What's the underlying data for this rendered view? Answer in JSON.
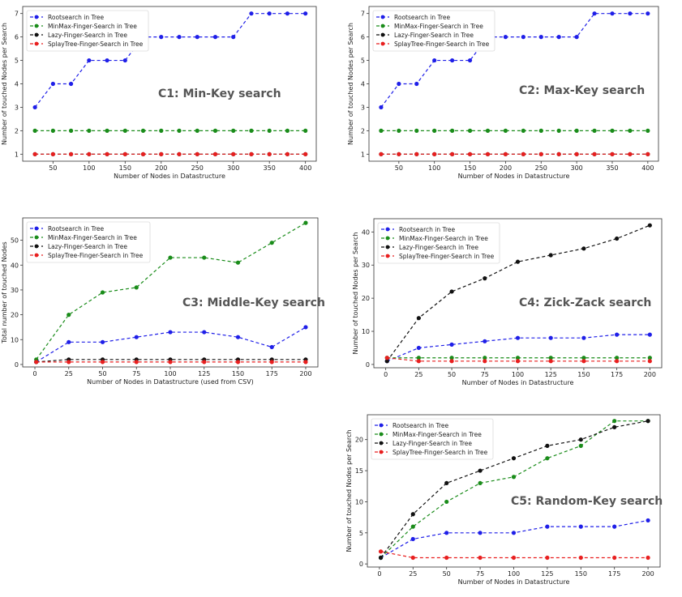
{
  "chart_data": [
    {
      "type": "line",
      "annotation": "C1: Min-Key search",
      "xlabel": "Number of Nodes in Datastructure",
      "ylabel": "Number of touched Nodes per Search",
      "xlim": [
        8,
        415
      ],
      "ylim": [
        0.7,
        7.3
      ],
      "xticks": [
        50,
        100,
        150,
        200,
        250,
        300,
        350,
        400
      ],
      "yticks": [
        1,
        2,
        3,
        4,
        5,
        6,
        7
      ],
      "legend": "top-left",
      "series": [
        {
          "name": "Rootsearch in Tree",
          "color": "#1f1fe8",
          "x": [
            25,
            50,
            75,
            100,
            125,
            150,
            175,
            200,
            225,
            250,
            275,
            300,
            325,
            350,
            375,
            400
          ],
          "y": [
            3,
            4,
            4,
            5,
            5,
            5,
            6,
            6,
            6,
            6,
            6,
            6,
            7,
            7,
            7,
            7
          ]
        },
        {
          "name": "MinMax-Finger-Search in Tree",
          "color": "#1a8c1a",
          "x": [
            25,
            50,
            75,
            100,
            125,
            150,
            175,
            200,
            225,
            250,
            275,
            300,
            325,
            350,
            375,
            400
          ],
          "y": [
            2,
            2,
            2,
            2,
            2,
            2,
            2,
            2,
            2,
            2,
            2,
            2,
            2,
            2,
            2,
            2
          ]
        },
        {
          "name": "Lazy-Finger-Search in Tree",
          "color": "#111111",
          "x": [
            25,
            50,
            75,
            100,
            125,
            150,
            175,
            200,
            225,
            250,
            275,
            300,
            325,
            350,
            375,
            400
          ],
          "y": [
            1,
            1,
            1,
            1,
            1,
            1,
            1,
            1,
            1,
            1,
            1,
            1,
            1,
            1,
            1,
            1
          ]
        },
        {
          "name": "SplayTree-Finger-Search  in Tree",
          "color": "#e81f1f",
          "x": [
            25,
            50,
            75,
            100,
            125,
            150,
            175,
            200,
            225,
            250,
            275,
            300,
            325,
            350,
            375,
            400
          ],
          "y": [
            1,
            1,
            1,
            1,
            1,
            1,
            1,
            1,
            1,
            1,
            1,
            1,
            1,
            1,
            1,
            1
          ]
        }
      ]
    },
    {
      "type": "line",
      "annotation": "C2: Max-Key search",
      "xlabel": "Number of Nodes in Datastructure",
      "ylabel": "Number of touched Nodes per Search",
      "xlim": [
        8,
        415
      ],
      "ylim": [
        0.7,
        7.3
      ],
      "xticks": [
        50,
        100,
        150,
        200,
        250,
        300,
        350,
        400
      ],
      "yticks": [
        1,
        2,
        3,
        4,
        5,
        6,
        7
      ],
      "legend": "top-left",
      "series": [
        {
          "name": "Rootsearch in Tree",
          "color": "#1f1fe8",
          "x": [
            25,
            50,
            75,
            100,
            125,
            150,
            175,
            200,
            225,
            250,
            275,
            300,
            325,
            350,
            375,
            400
          ],
          "y": [
            3,
            4,
            4,
            5,
            5,
            5,
            6,
            6,
            6,
            6,
            6,
            6,
            7,
            7,
            7,
            7
          ]
        },
        {
          "name": "MinMax-Finger-Search in Tree",
          "color": "#1a8c1a",
          "x": [
            25,
            50,
            75,
            100,
            125,
            150,
            175,
            200,
            225,
            250,
            275,
            300,
            325,
            350,
            375,
            400
          ],
          "y": [
            2,
            2,
            2,
            2,
            2,
            2,
            2,
            2,
            2,
            2,
            2,
            2,
            2,
            2,
            2,
            2
          ]
        },
        {
          "name": "Lazy-Finger-Search in Tree",
          "color": "#111111",
          "x": [
            25,
            50,
            75,
            100,
            125,
            150,
            175,
            200,
            225,
            250,
            275,
            300,
            325,
            350,
            375,
            400
          ],
          "y": [
            1,
            1,
            1,
            1,
            1,
            1,
            1,
            1,
            1,
            1,
            1,
            1,
            1,
            1,
            1,
            1
          ]
        },
        {
          "name": "SplayTree-Finger-Search  in Tree",
          "color": "#e81f1f",
          "x": [
            25,
            50,
            75,
            100,
            125,
            150,
            175,
            200,
            225,
            250,
            275,
            300,
            325,
            350,
            375,
            400
          ],
          "y": [
            1,
            1,
            1,
            1,
            1,
            1,
            1,
            1,
            1,
            1,
            1,
            1,
            1,
            1,
            1,
            1
          ]
        }
      ]
    },
    {
      "type": "line",
      "annotation": "C3: Middle-Key search",
      "xlabel": "Number of Nodes in Datastructure (used from CSV)",
      "ylabel": "Total number of touched Nodes",
      "xlim": [
        -9,
        209
      ],
      "ylim": [
        -1,
        59
      ],
      "xticks": [
        0,
        25,
        50,
        75,
        100,
        125,
        150,
        175,
        200
      ],
      "yticks": [
        0,
        10,
        20,
        30,
        40,
        50
      ],
      "legend": "top-left",
      "series": [
        {
          "name": "Rootsearch in Tree",
          "color": "#1f1fe8",
          "x": [
            1,
            25,
            50,
            75,
            100,
            125,
            150,
            175,
            200
          ],
          "y": [
            1,
            9,
            9,
            11,
            13,
            13,
            11,
            7,
            15
          ]
        },
        {
          "name": "MinMax-Finger-Search in Tree",
          "color": "#1a8c1a",
          "x": [
            1,
            25,
            50,
            75,
            100,
            125,
            150,
            175,
            200
          ],
          "y": [
            2,
            20,
            29,
            31,
            43,
            43,
            41,
            49,
            57
          ]
        },
        {
          "name": "Lazy-Finger-Search in Tree",
          "color": "#111111",
          "x": [
            1,
            25,
            50,
            75,
            100,
            125,
            150,
            175,
            200
          ],
          "y": [
            1,
            2,
            2,
            2,
            2,
            2,
            2,
            2,
            2
          ]
        },
        {
          "name": "SplayTree-Finger-Search  in Tree",
          "color": "#e81f1f",
          "x": [
            1,
            25,
            50,
            75,
            100,
            125,
            150,
            175,
            200
          ],
          "y": [
            1,
            1,
            1,
            1,
            1,
            1,
            1,
            1,
            1
          ]
        }
      ]
    },
    {
      "type": "line",
      "annotation": "C4: Zick-Zack search",
      "xlabel": "Number of Nodes in Datastructure",
      "ylabel": "Number of touched Nodes per Search",
      "xlim": [
        -9,
        209
      ],
      "ylim": [
        -1,
        44
      ],
      "xticks": [
        0,
        25,
        50,
        75,
        100,
        125,
        150,
        175,
        200
      ],
      "yticks": [
        0,
        10,
        20,
        30,
        40
      ],
      "legend": "top-left",
      "series": [
        {
          "name": "Rootsearch in Tree",
          "color": "#1f1fe8",
          "x": [
            1,
            25,
            50,
            75,
            100,
            125,
            150,
            175,
            200
          ],
          "y": [
            1,
            5,
            6,
            7,
            8,
            8,
            8,
            9,
            9
          ]
        },
        {
          "name": "MinMax-Finger-Search in Tree",
          "color": "#1a8c1a",
          "x": [
            1,
            25,
            50,
            75,
            100,
            125,
            150,
            175,
            200
          ],
          "y": [
            2,
            2,
            2,
            2,
            2,
            2,
            2,
            2,
            2
          ]
        },
        {
          "name": "Lazy-Finger-Search in Tree",
          "color": "#111111",
          "x": [
            1,
            25,
            50,
            75,
            100,
            125,
            150,
            175,
            200
          ],
          "y": [
            1,
            14,
            22,
            26,
            31,
            33,
            35,
            38,
            42
          ]
        },
        {
          "name": "SplayTree-Finger-Search  in Tree",
          "color": "#e81f1f",
          "x": [
            1,
            25,
            50,
            75,
            100,
            125,
            150,
            175,
            200
          ],
          "y": [
            2,
            1,
            1,
            1,
            1,
            1,
            1,
            1,
            1
          ]
        }
      ]
    },
    {
      "type": "line",
      "annotation": "C5: Random-Key search",
      "xlabel": "Number of Nodes in Datastructure",
      "ylabel": "Number of touched Nodes per Search",
      "xlim": [
        -9,
        209
      ],
      "ylim": [
        -0.5,
        24
      ],
      "xticks": [
        0,
        25,
        50,
        75,
        100,
        125,
        150,
        175,
        200
      ],
      "yticks": [
        0,
        5,
        10,
        15,
        20
      ],
      "legend": "top-left",
      "series": [
        {
          "name": "Rootsearch in Tree",
          "color": "#1f1fe8",
          "x": [
            1,
            25,
            50,
            75,
            100,
            125,
            150,
            175,
            200
          ],
          "y": [
            1,
            4,
            5,
            5,
            5,
            6,
            6,
            6,
            7
          ]
        },
        {
          "name": "MinMax-Finger-Search in Tree",
          "color": "#1a8c1a",
          "x": [
            1,
            25,
            50,
            75,
            100,
            125,
            150,
            175,
            200
          ],
          "y": [
            1,
            6,
            10,
            13,
            14,
            17,
            19,
            23,
            23
          ]
        },
        {
          "name": "Lazy-Finger-Search in Tree",
          "color": "#111111",
          "x": [
            1,
            25,
            50,
            75,
            100,
            125,
            150,
            175,
            200
          ],
          "y": [
            1,
            8,
            13,
            15,
            17,
            19,
            20,
            22,
            23
          ]
        },
        {
          "name": "SplayTree-Finger-Search  in Tree",
          "color": "#e81f1f",
          "x": [
            1,
            25,
            50,
            75,
            100,
            125,
            150,
            175,
            200
          ],
          "y": [
            2,
            1,
            1,
            1,
            1,
            1,
            1,
            1,
            1
          ]
        }
      ]
    }
  ]
}
